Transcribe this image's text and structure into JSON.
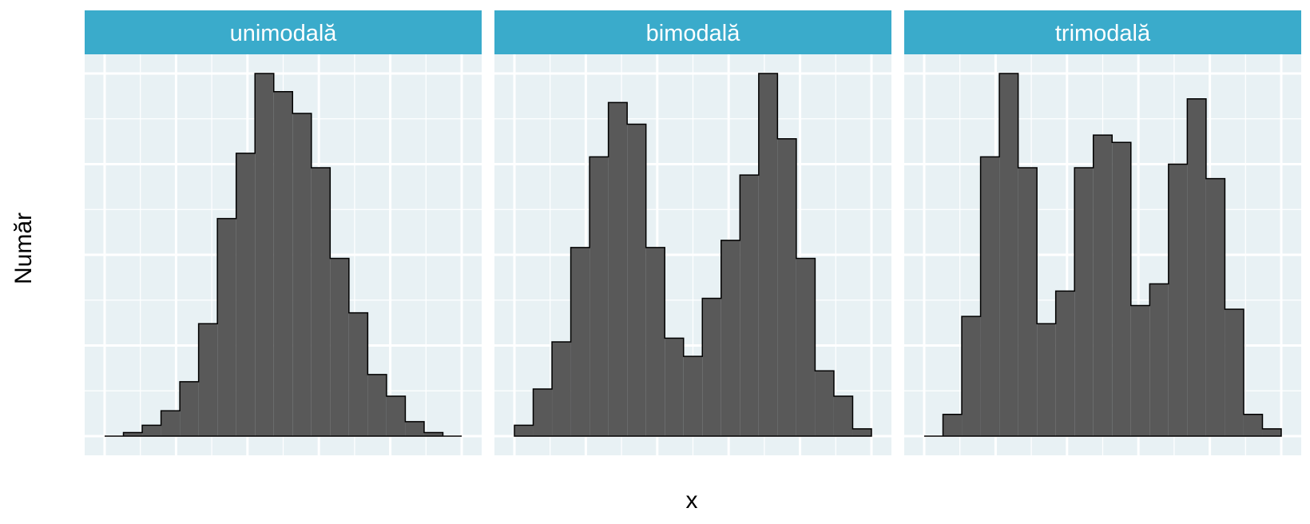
{
  "chart_data": {
    "type": "histogram",
    "xlabel": "x",
    "ylabel": "Număr",
    "colors": {
      "strip": "#3AABCB",
      "panel": "#E8F1F4",
      "grid": "#FFFFFF",
      "bar_fill": "#595959",
      "bar_edge": "#000000"
    },
    "grid": true,
    "panels": [
      {
        "label": "unimodală",
        "ylim": [
          0,
          100
        ],
        "counts": [
          0,
          1,
          3,
          7,
          15,
          31,
          60,
          78,
          100,
          95,
          89,
          74,
          49,
          34,
          17,
          11,
          4,
          1,
          0
        ]
      },
      {
        "label": "bimodală",
        "ylim": [
          0,
          100
        ],
        "counts": [
          3,
          13,
          26,
          52,
          77,
          92,
          86,
          52,
          27,
          22,
          38,
          54,
          72,
          100,
          82,
          49,
          18,
          11,
          2
        ]
      },
      {
        "label": "trimodală",
        "ylim": [
          0,
          100
        ],
        "counts": [
          0,
          6,
          33,
          77,
          100,
          74,
          31,
          40,
          74,
          83,
          81,
          36,
          42,
          75,
          93,
          71,
          35,
          6,
          2
        ]
      }
    ]
  }
}
